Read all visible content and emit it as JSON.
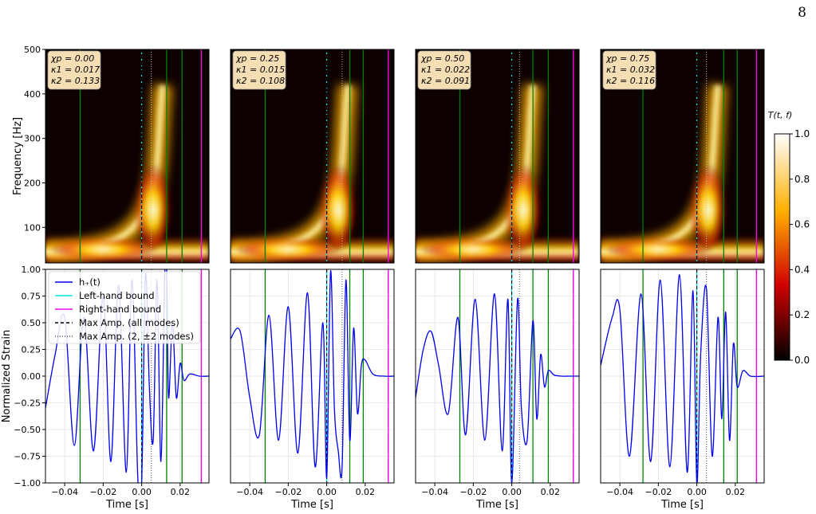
{
  "page_number": "8",
  "colorbar": {
    "label": "T(t, f)",
    "ticks": [
      "0.0",
      "0.2",
      "0.4",
      "0.6",
      "0.8",
      "1.0"
    ],
    "colormap": "hot"
  },
  "colors": {
    "waveform": "#0000ee",
    "left_bound": "#00e5ee",
    "right_bound": "#ee00ee",
    "max_amp_all": "#000000",
    "max_amp_22": "#555555",
    "green_lines": "#008000",
    "infobox_bg": "#f5deb3"
  },
  "legend": {
    "placement": "upper-left of first bottom panel",
    "entries": [
      {
        "key": "h",
        "label": "h₊(t)",
        "style": "solid",
        "color": "#0000ee"
      },
      {
        "key": "lb",
        "label": "Left-hand bound",
        "style": "solid",
        "color": "#00e5ee"
      },
      {
        "key": "rb",
        "label": "Right-hand bound",
        "style": "solid",
        "color": "#ee00ee"
      },
      {
        "key": "ma",
        "label": "Max Amp. (all modes)",
        "style": "dashed",
        "color": "#000000"
      },
      {
        "key": "m22",
        "label": "Max Amp. (2, ±2 modes)",
        "style": "dotted",
        "color": "#555555"
      }
    ]
  },
  "chart_data": [
    {
      "type": "heatmap",
      "panel": 1,
      "info": [
        "χp = 0.00",
        "κ1 = 0.017",
        "κ2 = 0.133"
      ],
      "ylabel": "Frequency [Hz]",
      "xlim": [
        -0.05,
        0.035
      ],
      "ylim": [
        20,
        500
      ],
      "yticks": [
        100,
        200,
        300,
        400,
        500
      ],
      "vlines": {
        "green": [
          -0.032,
          0.013,
          0.021
        ],
        "left_bound": 0.0,
        "max_amp_all": 0.0,
        "max_amp_22": 0.005,
        "right_bound": 0.031
      }
    },
    {
      "type": "line",
      "panel": 1,
      "series": [
        {
          "name": "h₊(t)",
          "x": [
            -0.05,
            -0.045,
            -0.04,
            -0.035,
            -0.03,
            -0.025,
            -0.02,
            -0.016,
            -0.012,
            -0.008,
            -0.005,
            -0.002,
            0.0,
            0.002,
            0.004,
            0.006,
            0.008,
            0.01,
            0.012,
            0.013,
            0.014,
            0.016,
            0.018,
            0.02,
            0.022,
            0.025,
            0.03,
            0.035
          ],
          "y": [
            -0.3,
            0.2,
            0.55,
            -0.65,
            0.55,
            -0.7,
            0.75,
            -0.8,
            0.85,
            -0.9,
            0.9,
            -0.95,
            -1.0,
            0.95,
            -0.1,
            -0.6,
            0.9,
            -0.8,
            0.95,
            1.0,
            -0.2,
            0.5,
            -0.2,
            0.12,
            -0.04,
            0.02,
            0.0,
            0.0
          ]
        }
      ],
      "xlabel": "Time [s]",
      "ylabel": "Normalized Strain",
      "xlim": [
        -0.05,
        0.035
      ],
      "ylim": [
        -1.0,
        1.0
      ],
      "xticks": [
        -0.04,
        -0.02,
        0.0,
        0.02
      ],
      "yticks": [
        -1.0,
        -0.75,
        -0.5,
        -0.25,
        0.0,
        0.25,
        0.5,
        0.75,
        1.0
      ],
      "grid": true,
      "vlines": {
        "green": [
          -0.032,
          0.013,
          0.021
        ],
        "left_bound": 0.0,
        "max_amp_all": 0.0,
        "max_amp_22": 0.005,
        "right_bound": 0.031
      }
    },
    {
      "type": "heatmap",
      "panel": 2,
      "info": [
        "χp = 0.25",
        "κ1 = 0.015",
        "κ2 = 0.108"
      ],
      "xlim": [
        -0.05,
        0.035
      ],
      "ylim": [
        20,
        500
      ],
      "vlines": {
        "green": [
          -0.032,
          0.012,
          0.019
        ],
        "left_bound": 0.0,
        "max_amp_all": 0.0,
        "max_amp_22": 0.008,
        "right_bound": 0.032
      }
    },
    {
      "type": "line",
      "panel": 2,
      "series": [
        {
          "name": "h₊(t)",
          "x": [
            -0.05,
            -0.045,
            -0.04,
            -0.035,
            -0.03,
            -0.025,
            -0.02,
            -0.015,
            -0.01,
            -0.006,
            -0.002,
            0.0,
            0.002,
            0.004,
            0.006,
            0.008,
            0.01,
            0.012,
            0.014,
            0.016,
            0.018,
            0.02,
            0.024,
            0.03,
            0.035
          ],
          "y": [
            0.35,
            0.42,
            -0.2,
            -0.55,
            0.57,
            -0.6,
            0.65,
            -0.72,
            0.78,
            -0.85,
            0.5,
            -0.95,
            0.98,
            -0.3,
            -0.7,
            -0.85,
            0.9,
            -0.6,
            0.45,
            -0.35,
            0.1,
            0.15,
            0.02,
            0.0,
            0.0
          ]
        }
      ],
      "xlabel": "Time [s]",
      "xlim": [
        -0.05,
        0.035
      ],
      "ylim": [
        -1.0,
        1.0
      ],
      "xticks": [
        -0.04,
        -0.02,
        0.0,
        0.02
      ],
      "grid": true,
      "vlines": {
        "green": [
          -0.032,
          0.012,
          0.019
        ],
        "left_bound": 0.0,
        "max_amp_all": 0.0,
        "max_amp_22": 0.008,
        "right_bound": 0.032
      }
    },
    {
      "type": "heatmap",
      "panel": 3,
      "info": [
        "χp = 0.50",
        "κ1 = 0.022",
        "κ2 = 0.091"
      ],
      "xlim": [
        -0.05,
        0.035
      ],
      "ylim": [
        20,
        500
      ],
      "vlines": {
        "green": [
          -0.027,
          0.011,
          0.019
        ],
        "left_bound": 0.0,
        "max_amp_all": 0.0,
        "max_amp_22": 0.004,
        "right_bound": 0.032
      }
    },
    {
      "type": "line",
      "panel": 3,
      "series": [
        {
          "name": "h₊(t)",
          "x": [
            -0.05,
            -0.046,
            -0.042,
            -0.038,
            -0.033,
            -0.028,
            -0.024,
            -0.019,
            -0.014,
            -0.009,
            -0.005,
            -0.002,
            0.0,
            0.003,
            0.005,
            0.008,
            0.011,
            0.013,
            0.015,
            0.017,
            0.019,
            0.022,
            0.026,
            0.03,
            0.035
          ],
          "y": [
            -0.2,
            0.25,
            0.42,
            0.1,
            -0.35,
            0.55,
            -0.55,
            0.72,
            -0.6,
            0.77,
            -0.7,
            0.72,
            -1.0,
            0.72,
            -0.3,
            -0.6,
            0.52,
            -0.4,
            0.2,
            -0.1,
            0.05,
            0.01,
            0.0,
            0.0,
            0.0
          ]
        }
      ],
      "xlabel": "Time [s]",
      "xlim": [
        -0.05,
        0.035
      ],
      "ylim": [
        -1.0,
        1.0
      ],
      "xticks": [
        -0.04,
        -0.02,
        0.0,
        0.02
      ],
      "grid": true,
      "vlines": {
        "green": [
          -0.027,
          0.011,
          0.019
        ],
        "left_bound": 0.0,
        "max_amp_all": 0.0,
        "max_amp_22": 0.004,
        "right_bound": 0.032
      }
    },
    {
      "type": "heatmap",
      "panel": 4,
      "info": [
        "χp = 0.75",
        "κ1 = 0.032",
        "κ2 = 0.116"
      ],
      "xlim": [
        -0.05,
        0.035
      ],
      "ylim": [
        20,
        500
      ],
      "vlines": {
        "green": [
          -0.028,
          0.014,
          0.021
        ],
        "left_bound": 0.0,
        "max_amp_all": 0.0,
        "max_amp_22": 0.005,
        "right_bound": 0.031
      }
    },
    {
      "type": "line",
      "panel": 4,
      "series": [
        {
          "name": "h₊(t)",
          "x": [
            -0.05,
            -0.044,
            -0.04,
            -0.035,
            -0.029,
            -0.024,
            -0.019,
            -0.014,
            -0.009,
            -0.005,
            -0.002,
            0.0,
            0.002,
            0.005,
            0.008,
            0.011,
            0.013,
            0.015,
            0.017,
            0.019,
            0.021,
            0.024,
            0.028,
            0.035
          ],
          "y": [
            0.1,
            0.55,
            0.62,
            -0.75,
            0.77,
            -0.8,
            0.9,
            -0.85,
            0.95,
            -0.9,
            0.8,
            -1.0,
            0.2,
            0.82,
            -0.75,
            0.55,
            -0.4,
            0.6,
            -0.6,
            0.3,
            -0.1,
            0.05,
            0.0,
            0.0
          ]
        }
      ],
      "xlabel": "Time [s]",
      "xlim": [
        -0.05,
        0.035
      ],
      "ylim": [
        -1.0,
        1.0
      ],
      "xticks": [
        -0.04,
        -0.02,
        0.0,
        0.02
      ],
      "grid": true,
      "vlines": {
        "green": [
          -0.028,
          0.014,
          0.021
        ],
        "left_bound": 0.0,
        "max_amp_all": 0.0,
        "max_amp_22": 0.005,
        "right_bound": 0.031
      }
    }
  ]
}
